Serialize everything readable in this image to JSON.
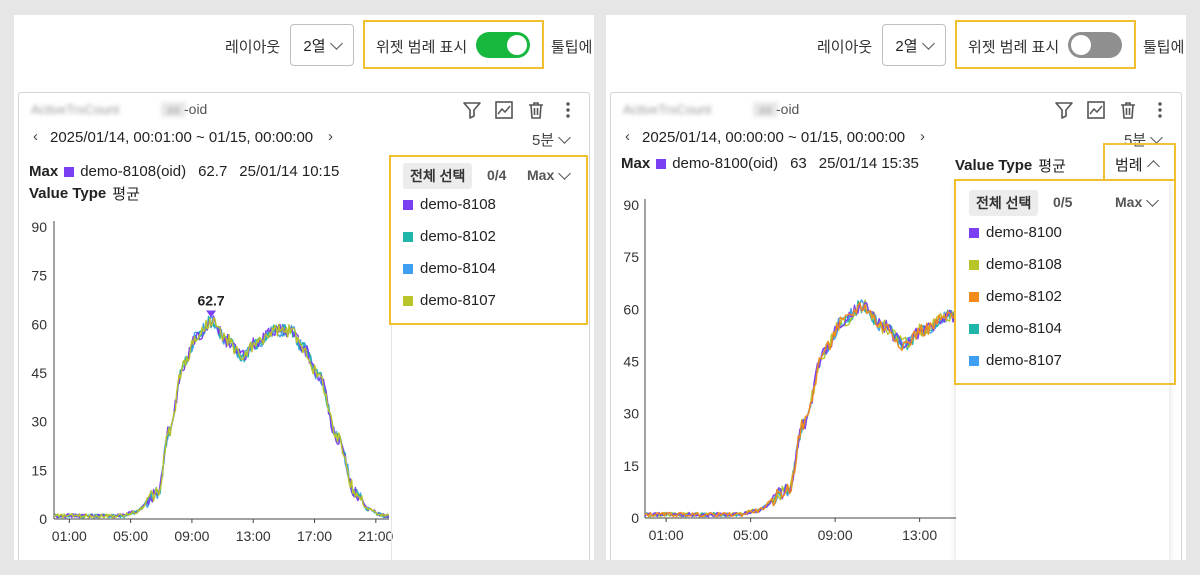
{
  "toolbar": {
    "layout_label": "레이아웃",
    "layout_value": "2열",
    "legend_toggle_label": "위젯 범례 표시",
    "tooltip_label": "툴팁에"
  },
  "left": {
    "toggle_state": "on",
    "widget": {
      "title_blurred": "ActiveTrxCount",
      "oid_suffix": "-oid",
      "range": "2025/01/14, 00:01:00 ~ 01/15, 00:00:00",
      "interval": "5분",
      "max_label": "Max",
      "max_series": "demo-8108(oid)",
      "max_value": "62.7",
      "max_time": "25/01/14 10:15",
      "value_type_label": "Value Type",
      "value_type": "평균",
      "peak_label": "62.7"
    },
    "legend": {
      "select_all": "전체 선택",
      "count": "0/4",
      "sort": "Max",
      "items": [
        {
          "name": "demo-8108",
          "color": "#7a3ff2"
        },
        {
          "name": "demo-8102",
          "color": "#1fb5a8"
        },
        {
          "name": "demo-8104",
          "color": "#3f9ff2"
        },
        {
          "name": "demo-8107",
          "color": "#b8c52a"
        }
      ]
    },
    "chart_data": {
      "type": "line",
      "x_ticks": [
        "01:00",
        "05:00",
        "09:00",
        "13:00",
        "17:00",
        "21:00"
      ],
      "y_ticks": [
        "90",
        "75",
        "60",
        "45",
        "30",
        "15",
        "0"
      ],
      "ylim": [
        0,
        90
      ],
      "x_range_hours": [
        0,
        24
      ],
      "profile": [
        [
          0,
          1
        ],
        [
          4.5,
          1
        ],
        [
          5.2,
          2
        ],
        [
          6.8,
          8
        ],
        [
          7.5,
          27
        ],
        [
          8.5,
          48
        ],
        [
          9.3,
          56
        ],
        [
          10.25,
          61
        ],
        [
          11.3,
          55
        ],
        [
          12.3,
          50
        ],
        [
          13.1,
          54
        ],
        [
          14.5,
          58
        ],
        [
          15.5,
          58
        ],
        [
          16.2,
          53
        ],
        [
          17.3,
          44
        ],
        [
          18.5,
          25
        ],
        [
          19.7,
          8
        ],
        [
          20.5,
          3
        ],
        [
          21.5,
          1
        ],
        [
          24,
          1
        ]
      ]
    }
  },
  "right": {
    "toggle_state": "off",
    "widget": {
      "title_blurred": "ActiveTrxCount",
      "oid_suffix": "-oid",
      "range": "2025/01/14, 00:00:00 ~ 01/15, 00:00:00",
      "interval": "5분",
      "max_label": "Max",
      "max_series": "demo-8100(oid)",
      "max_value": "63",
      "max_time": "25/01/14 15:35",
      "value_type_label": "Value Type",
      "value_type": "평균",
      "legend_button": "범례"
    },
    "legend": {
      "select_all": "전체 선택",
      "count": "0/5",
      "sort": "Max",
      "items": [
        {
          "name": "demo-8100",
          "color": "#7a3ff2"
        },
        {
          "name": "demo-8108",
          "color": "#b8c52a"
        },
        {
          "name": "demo-8102",
          "color": "#f28a1c"
        },
        {
          "name": "demo-8104",
          "color": "#1fb5a8"
        },
        {
          "name": "demo-8107",
          "color": "#3f9ff2"
        }
      ]
    },
    "chart_data": {
      "type": "line",
      "x_ticks": [
        "01:00",
        "05:00",
        "09:00",
        "13:00"
      ],
      "y_ticks": [
        "90",
        "75",
        "60",
        "45",
        "30",
        "15",
        "0"
      ],
      "ylim": [
        0,
        90
      ],
      "x_range_hours": [
        0,
        24
      ],
      "profile": [
        [
          0,
          1
        ],
        [
          4.5,
          1
        ],
        [
          5.2,
          2
        ],
        [
          6.8,
          8
        ],
        [
          7.5,
          27
        ],
        [
          8.5,
          48
        ],
        [
          9.3,
          56
        ],
        [
          10.25,
          61
        ],
        [
          11.3,
          55
        ],
        [
          12.3,
          50
        ],
        [
          13.1,
          54
        ],
        [
          14.5,
          58
        ],
        [
          15.5,
          58
        ],
        [
          16.2,
          53
        ],
        [
          17.3,
          44
        ],
        [
          18.5,
          25
        ],
        [
          19.7,
          8
        ],
        [
          20.5,
          3
        ],
        [
          21.5,
          1
        ],
        [
          24,
          1
        ]
      ]
    }
  }
}
